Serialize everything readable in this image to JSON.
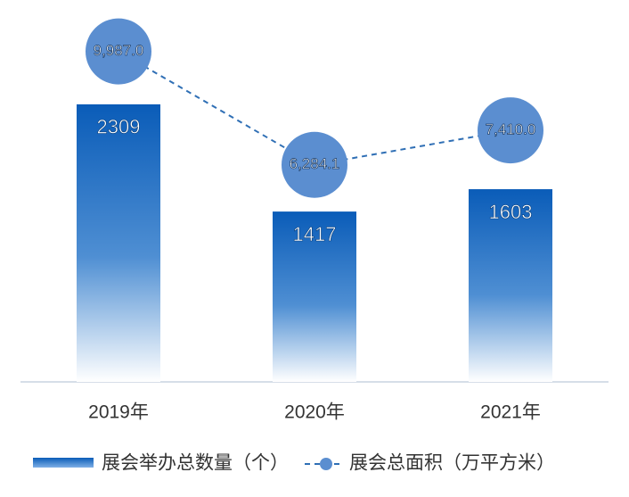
{
  "chart_data": {
    "type": "bar",
    "categories": [
      "2019年",
      "2020年",
      "2021年"
    ],
    "series": [
      {
        "name": "展会举办总数量（个）",
        "type": "bar",
        "color": "#0a5cb8",
        "values": [
          2309,
          1417,
          1603
        ]
      },
      {
        "name": "展会总面积（万平方米）",
        "type": "line",
        "axis": "y2",
        "color": "#2f6fb5",
        "marker_color": "#5b8ed0",
        "values": [
          9987.0,
          6284.1,
          7410.0
        ],
        "value_labels": [
          "9,987.0",
          "6,284.1",
          "7,410.0"
        ]
      }
    ],
    "ylim": [
      0,
      2880
    ],
    "y2lim": [
      -800,
      10500
    ],
    "legend": "bottom"
  }
}
